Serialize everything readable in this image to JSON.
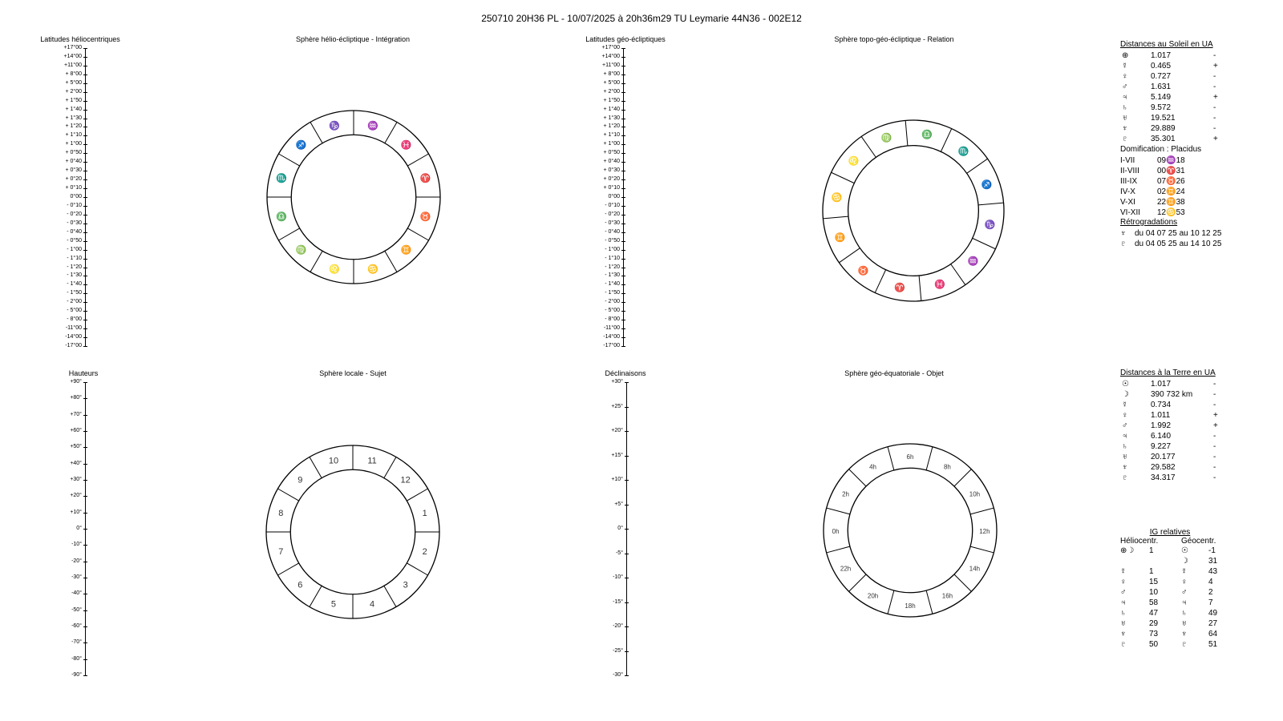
{
  "title": "250710 20H36 PL   -  10/07/2025 à 20h36m29 TU  Leymarie  44N36 - 002E12",
  "headings": {
    "helio_lat": "Latitudes héliocentriques",
    "helio_sphere": "Sphère hélio-écliptique - Intégration",
    "geo_lat": "Latitudes géo-écliptiques",
    "topo_sphere": "Sphère topo-géo-écliptique - Relation",
    "hauteurs": "Hauteurs",
    "local_sphere": "Sphère locale - Sujet",
    "declinaisons": "Déclinaisons",
    "equat_sphere": "Sphère géo-équatoriale - Objet"
  },
  "scales": {
    "lat": [
      "+17°00",
      "+14°00",
      "+11°00",
      "+ 8°00",
      "+ 5°00",
      "+ 2°00",
      "+ 1°50",
      "+ 1°40",
      "+ 1°30",
      "+ 1°20",
      "+ 1°10",
      "+ 1°00",
      "+ 0°50",
      "+ 0°40",
      "+ 0°30",
      "+ 0°20",
      "+ 0°10",
      "0°00",
      "- 0°10",
      "- 0°20",
      "- 0°30",
      "- 0°40",
      "- 0°50",
      "- 1°00",
      "- 1°10",
      "- 1°20",
      "- 1°30",
      "- 1°40",
      "- 1°50",
      "- 2°00",
      "- 5°00",
      "- 8°00",
      "-11°00",
      "-14°00",
      "-17°00"
    ],
    "hauteurs": [
      "+90°",
      "+80°",
      "+70°",
      "+60°",
      "+50°",
      "+40°",
      "+30°",
      "+20°",
      "+10°",
      "0°",
      "-10°",
      "-20°",
      "-30°",
      "-40°",
      "-50°",
      "-60°",
      "-70°",
      "-80°",
      "-90°"
    ],
    "declinaisons": [
      "+30°",
      "+25°",
      "+20°",
      "+15°",
      "+10°",
      "+5°",
      "0°",
      "-5°",
      "-10°",
      "-15°",
      "-20°",
      "-25°",
      "-30°"
    ]
  },
  "sun_distances": {
    "title": "Distances au Soleil en UA",
    "rows": [
      {
        "sym": "⊕",
        "val": "1.017",
        "sign": "-"
      },
      {
        "sym": "☿",
        "val": "0.465",
        "sign": "+"
      },
      {
        "sym": "♀",
        "val": "0.727",
        "sign": "-"
      },
      {
        "sym": "♂",
        "val": "1.631",
        "sign": "-"
      },
      {
        "sym": "♃",
        "val": "5.149",
        "sign": "+"
      },
      {
        "sym": "♄",
        "val": "9.572",
        "sign": "-"
      },
      {
        "sym": "♅",
        "val": "19.521",
        "sign": "-"
      },
      {
        "sym": "♆",
        "val": "29.889",
        "sign": "-"
      },
      {
        "sym": "♇",
        "val": "35.301",
        "sign": "+"
      }
    ]
  },
  "domification": {
    "title": "Domification : Placidus",
    "rows": [
      {
        "house": "I-VII",
        "val": "09♒18"
      },
      {
        "house": "II-VIII",
        "val": "00♈31"
      },
      {
        "house": "III-IX",
        "val": "07♉26"
      },
      {
        "house": "IV-X",
        "val": "02♊24"
      },
      {
        "house": "V-XI",
        "val": "22♊38"
      },
      {
        "house": "VI-XII",
        "val": "12♋53"
      }
    ]
  },
  "retro": {
    "title": "Rétrogradations",
    "rows": [
      {
        "sym": "♆",
        "val": "du 04 07 25 au 10 12 25"
      },
      {
        "sym": "♇",
        "val": "du 04 05 25 au 14 10 25"
      }
    ]
  },
  "earth_distances": {
    "title": "Distances à la Terre en UA",
    "rows": [
      {
        "sym": "☉",
        "val": "1.017",
        "sign": "-"
      },
      {
        "sym": "☽",
        "val": "390 732 km",
        "sign": "-"
      },
      {
        "sym": "☿",
        "val": "0.734",
        "sign": "-"
      },
      {
        "sym": "♀",
        "val": "1.011",
        "sign": "+"
      },
      {
        "sym": "♂",
        "val": "1.992",
        "sign": "+"
      },
      {
        "sym": "♃",
        "val": "6.140",
        "sign": "-"
      },
      {
        "sym": "♄",
        "val": "9.227",
        "sign": "-"
      },
      {
        "sym": "♅",
        "val": "20.177",
        "sign": "-"
      },
      {
        "sym": "♆",
        "val": "29.582",
        "sign": "-"
      },
      {
        "sym": "♇",
        "val": "34.317",
        "sign": "-"
      }
    ]
  },
  "ig": {
    "title": "IG relatives",
    "col_helio": "Héliocentr.",
    "col_geo": "Géocentr.",
    "rows": [
      {
        "hs": "⊕☽",
        "hv": "1",
        "gs": "☉",
        "gv": "-1"
      },
      {
        "hs": "",
        "hv": "",
        "gs": "☽",
        "gv": "31"
      },
      {
        "hs": "☿",
        "hv": "1",
        "gs": "☿",
        "gv": "43"
      },
      {
        "hs": "♀",
        "hv": "15",
        "gs": "♀",
        "gv": "4"
      },
      {
        "hs": "♂",
        "hv": "10",
        "gs": "♂",
        "gv": "2"
      },
      {
        "hs": "♃",
        "hv": "58",
        "gs": "♃",
        "gv": "7"
      },
      {
        "hs": "♄",
        "hv": "47",
        "gs": "♄",
        "gv": "49"
      },
      {
        "hs": "♅",
        "hv": "29",
        "gs": "♅",
        "gv": "27"
      },
      {
        "hs": "♆",
        "hv": "73",
        "gs": "♆",
        "gv": "64"
      },
      {
        "hs": "♇",
        "hv": "50",
        "gs": "♇",
        "gv": "51"
      }
    ]
  },
  "charts": {
    "helio": {
      "labels": [
        "♑",
        "♐",
        "♏",
        "♎",
        "♍",
        "♌",
        "♋",
        "♊",
        "♉",
        "♈",
        "♓",
        "♒"
      ],
      "start_deg": 105
    },
    "topo": {
      "labels": [
        "♍",
        "♌",
        "♋",
        "♊",
        "♉",
        "♈",
        "♓",
        "♒",
        "♑",
        "♐",
        "♏",
        "♎"
      ],
      "start_deg": 110
    },
    "local": {
      "labels": [
        "10",
        "9",
        "8",
        "7",
        "6",
        "5",
        "4",
        "3",
        "2",
        "1",
        "12",
        "11"
      ],
      "start_deg": 105
    },
    "equat": {
      "labels": [
        "6h",
        "4h",
        "2h",
        "0h",
        "22h",
        "20h",
        "18h",
        "16h",
        "14h",
        "12h",
        "10h",
        "8h"
      ],
      "start_deg": 90
    }
  },
  "colors": {
    "ring": "#000000"
  }
}
